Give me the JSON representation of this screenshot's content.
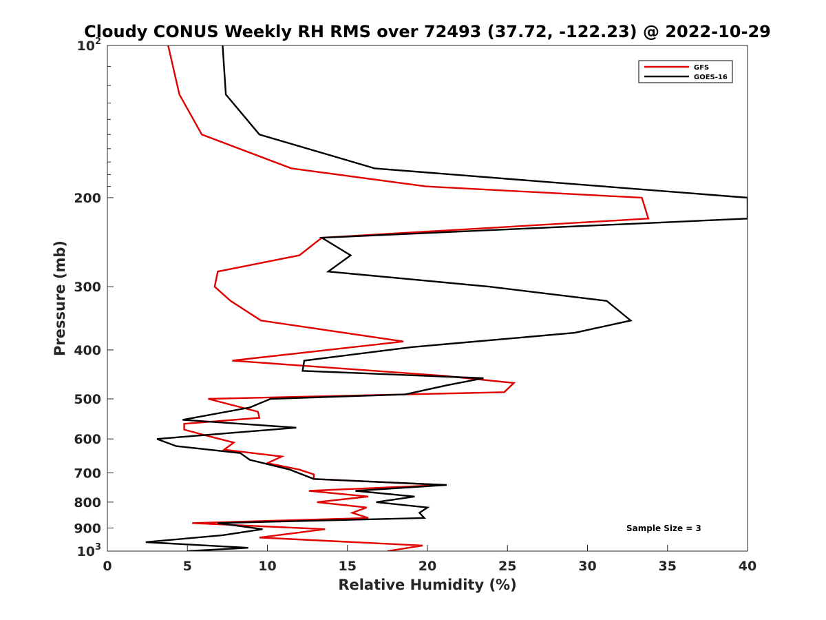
{
  "chart_data": {
    "type": "line",
    "title": "Cloudy CONUS Weekly RH RMS over 72493 (37.72, -122.23) @ 2022-10-29",
    "xlabel": "Relative Humidity (%)",
    "ylabel": "Pressure (mb)",
    "xlim": [
      0,
      40
    ],
    "ylim": [
      100,
      1000
    ],
    "yscale": "log",
    "y_reversed": true,
    "grid": false,
    "legend_placement": "top-right",
    "x_ticks": [
      "0",
      "5",
      "10",
      "15",
      "20",
      "25",
      "30",
      "35",
      "40"
    ],
    "y_ticks": [
      {
        "value": 100,
        "label": "10",
        "exp": "2"
      },
      {
        "value": 200,
        "label": "200",
        "exp": ""
      },
      {
        "value": 300,
        "label": "300",
        "exp": ""
      },
      {
        "value": 400,
        "label": "400",
        "exp": ""
      },
      {
        "value": 500,
        "label": "500",
        "exp": ""
      },
      {
        "value": 600,
        "label": "600",
        "exp": ""
      },
      {
        "value": 700,
        "label": "700",
        "exp": ""
      },
      {
        "value": 800,
        "label": "800",
        "exp": ""
      },
      {
        "value": 900,
        "label": "900",
        "exp": ""
      },
      {
        "value": 1000,
        "label": "10",
        "exp": "3"
      }
    ],
    "annotation": "Sample Size = 3",
    "series": [
      {
        "name": "GFS",
        "color": "#e00000",
        "points": [
          [
            3.8,
            100
          ],
          [
            4.5,
            125
          ],
          [
            5.9,
            150
          ],
          [
            11.5,
            175
          ],
          [
            19.9,
            190
          ],
          [
            33.4,
            200
          ],
          [
            33.8,
            220
          ],
          [
            13.4,
            240
          ],
          [
            12.0,
            260
          ],
          [
            6.9,
            280
          ],
          [
            6.7,
            300
          ],
          [
            7.7,
            320
          ],
          [
            9.6,
            350
          ],
          [
            18.5,
            385
          ],
          [
            7.8,
            420
          ],
          [
            21.0,
            450
          ],
          [
            25.4,
            465
          ],
          [
            24.8,
            485
          ],
          [
            6.3,
            500
          ],
          [
            9.4,
            530
          ],
          [
            9.5,
            545
          ],
          [
            4.8,
            560
          ],
          [
            4.8,
            575
          ],
          [
            6.1,
            590
          ],
          [
            7.9,
            610
          ],
          [
            7.3,
            630
          ],
          [
            10.9,
            650
          ],
          [
            10.0,
            670
          ],
          [
            12.0,
            690
          ],
          [
            12.9,
            705
          ],
          [
            12.9,
            720
          ],
          [
            21.0,
            740
          ],
          [
            12.6,
            760
          ],
          [
            16.3,
            780
          ],
          [
            13.1,
            800
          ],
          [
            16.2,
            820
          ],
          [
            15.3,
            840
          ],
          [
            16.3,
            860
          ],
          [
            5.3,
            880
          ],
          [
            13.6,
            905
          ],
          [
            9.5,
            940
          ],
          [
            19.7,
            975
          ],
          [
            17.5,
            1000
          ]
        ]
      },
      {
        "name": "GOES-16",
        "color": "#000000",
        "points": [
          [
            7.2,
            100
          ],
          [
            7.4,
            125
          ],
          [
            9.5,
            150
          ],
          [
            16.7,
            175
          ],
          [
            31.0,
            190
          ],
          [
            40.0,
            200
          ],
          [
            40.0,
            220
          ],
          [
            13.4,
            240
          ],
          [
            15.2,
            260
          ],
          [
            13.8,
            280
          ],
          [
            23.9,
            300
          ],
          [
            31.2,
            320
          ],
          [
            32.7,
            350
          ],
          [
            29.2,
            370
          ],
          [
            19.0,
            395
          ],
          [
            12.3,
            420
          ],
          [
            12.2,
            440
          ],
          [
            23.5,
            455
          ],
          [
            21.2,
            470
          ],
          [
            18.6,
            490
          ],
          [
            10.2,
            500
          ],
          [
            8.9,
            520
          ],
          [
            4.7,
            550
          ],
          [
            11.8,
            570
          ],
          [
            3.1,
            600
          ],
          [
            4.3,
            620
          ],
          [
            8.3,
            640
          ],
          [
            8.9,
            660
          ],
          [
            11.4,
            690
          ],
          [
            12.9,
            720
          ],
          [
            21.2,
            740
          ],
          [
            15.5,
            760
          ],
          [
            19.2,
            780
          ],
          [
            16.8,
            800
          ],
          [
            20.0,
            820
          ],
          [
            19.5,
            840
          ],
          [
            19.8,
            860
          ],
          [
            6.9,
            880
          ],
          [
            9.7,
            905
          ],
          [
            7.2,
            930
          ],
          [
            2.4,
            960
          ],
          [
            8.8,
            985
          ],
          [
            5.0,
            1000
          ]
        ]
      }
    ]
  }
}
